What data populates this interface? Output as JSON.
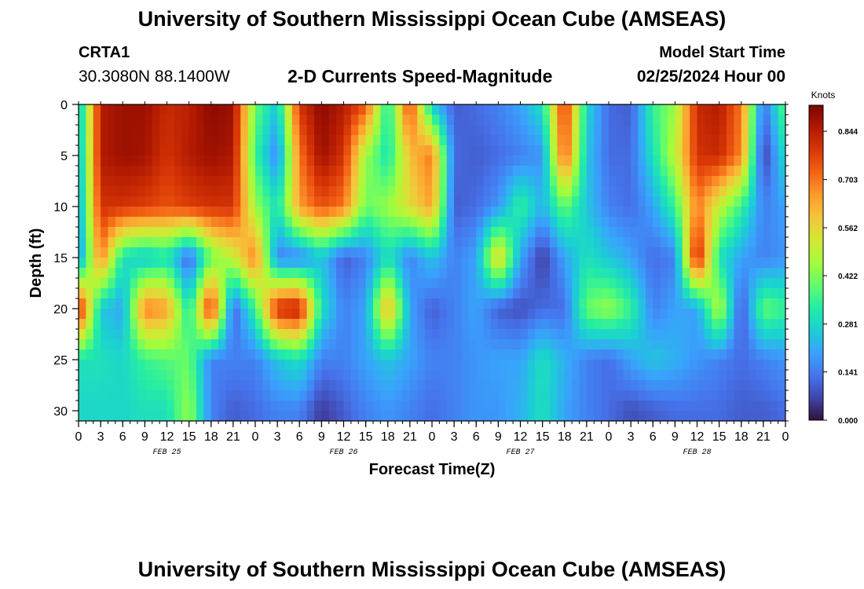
{
  "header": {
    "title": "University of Southern Mississippi Ocean Cube (AMSEAS)",
    "station_id": "CRTA1",
    "station_coords": "30.3080N  88.1400W",
    "chart_title": "2-D Currents Speed-Magnitude",
    "model_start_label": "Model Start Time",
    "model_start_value": "02/25/2024 Hour 00"
  },
  "footer": {
    "title": "University of Southern Mississippi Ocean Cube (AMSEAS)"
  },
  "colors": {
    "colormap": [
      "#30123b",
      "#4145ab",
      "#4675ed",
      "#39a2fc",
      "#1bcfd4",
      "#24eca6",
      "#61fc6c",
      "#a4fc3b",
      "#d1e834",
      "#f3c63a",
      "#fe9b2d",
      "#f36315",
      "#d93806",
      "#b11901",
      "#7a0402"
    ]
  },
  "chart_data": {
    "type": "heatmap",
    "title": "2-D Currents Speed-Magnitude",
    "xlabel": "Forecast Time(Z)",
    "ylabel": "Depth (ft)",
    "x_tick_labels": [
      "0",
      "3",
      "6",
      "9",
      "12",
      "15",
      "18",
      "21",
      "0",
      "3",
      "6",
      "9",
      "12",
      "15",
      "18",
      "21",
      "0",
      "3",
      "6",
      "9",
      "12",
      "15",
      "18",
      "21",
      "0",
      "3",
      "6",
      "9",
      "12",
      "15",
      "18",
      "21",
      "0"
    ],
    "x_hours": [
      0,
      3,
      6,
      9,
      12,
      15,
      18,
      21,
      24,
      27,
      30,
      33,
      36,
      39,
      42,
      45,
      48,
      51,
      54,
      57,
      60,
      63,
      66,
      69,
      72,
      75,
      78,
      81,
      84,
      87,
      90,
      93,
      96
    ],
    "date_labels": [
      {
        "label": "FEB 25",
        "hour": 12
      },
      {
        "label": "FEB 26",
        "hour": 36
      },
      {
        "label": "FEB 27",
        "hour": 60
      },
      {
        "label": "FEB 28",
        "hour": 84
      }
    ],
    "y_tick_labels": [
      "0",
      "5",
      "10",
      "15",
      "20",
      "25",
      "30"
    ],
    "y_ticks": [
      0,
      5,
      10,
      15,
      20,
      25,
      30
    ],
    "xlim": [
      0,
      96
    ],
    "ylim": [
      0,
      31
    ],
    "colorbar": {
      "units": "Knots",
      "tick_labels": [
        "0.000",
        "0.141",
        "0.281",
        "0.422",
        "0.562",
        "0.703",
        "0.844"
      ],
      "ticks": [
        0.0,
        0.141,
        0.281,
        0.422,
        0.562,
        0.703,
        0.844
      ],
      "range": [
        0,
        0.92
      ]
    },
    "grid": {
      "hours": [
        0,
        3,
        6,
        9,
        12,
        15,
        18,
        21,
        24,
        27,
        30,
        33,
        36,
        39,
        42,
        45,
        48,
        51,
        54,
        57,
        60,
        63,
        66,
        69,
        72,
        75,
        78,
        81,
        84,
        87,
        90,
        93,
        96
      ],
      "depths_ft": [
        0,
        5,
        10,
        15,
        20,
        25,
        30
      ],
      "speed_knots": [
        [
          0.22,
          0.85,
          0.88,
          0.88,
          0.82,
          0.84,
          0.9,
          0.88,
          0.4,
          0.25,
          0.8,
          0.9,
          0.85,
          0.75,
          0.3,
          0.78,
          0.25,
          0.1,
          0.12,
          0.15,
          0.2,
          0.3,
          0.8,
          0.28,
          0.12,
          0.1,
          0.35,
          0.45,
          0.82,
          0.85,
          0.7,
          0.12,
          0.4
        ],
        [
          0.2,
          0.85,
          0.88,
          0.87,
          0.8,
          0.85,
          0.88,
          0.86,
          0.35,
          0.15,
          0.7,
          0.88,
          0.8,
          0.45,
          0.3,
          0.6,
          0.7,
          0.12,
          0.1,
          0.12,
          0.15,
          0.18,
          0.75,
          0.25,
          0.12,
          0.12,
          0.3,
          0.5,
          0.8,
          0.82,
          0.68,
          0.05,
          0.3
        ],
        [
          0.18,
          0.8,
          0.8,
          0.78,
          0.75,
          0.78,
          0.8,
          0.8,
          0.45,
          0.3,
          0.65,
          0.75,
          0.7,
          0.4,
          0.45,
          0.55,
          0.65,
          0.1,
          0.12,
          0.18,
          0.35,
          0.22,
          0.4,
          0.25,
          0.15,
          0.12,
          0.2,
          0.35,
          0.7,
          0.5,
          0.35,
          0.15,
          0.2
        ],
        [
          0.15,
          0.7,
          0.3,
          0.25,
          0.3,
          0.1,
          0.4,
          0.5,
          0.7,
          0.15,
          0.15,
          0.25,
          0.1,
          0.15,
          0.3,
          0.15,
          0.25,
          0.15,
          0.2,
          0.6,
          0.2,
          0.05,
          0.2,
          0.3,
          0.25,
          0.2,
          0.12,
          0.15,
          0.85,
          0.3,
          0.2,
          0.15,
          0.18
        ],
        [
          0.85,
          0.25,
          0.2,
          0.7,
          0.65,
          0.3,
          0.82,
          0.1,
          0.35,
          0.82,
          0.85,
          0.3,
          0.15,
          0.2,
          0.65,
          0.2,
          0.1,
          0.15,
          0.2,
          0.1,
          0.08,
          0.12,
          0.12,
          0.4,
          0.45,
          0.35,
          0.15,
          0.2,
          0.2,
          0.5,
          0.08,
          0.4,
          0.35
        ],
        [
          0.3,
          0.3,
          0.28,
          0.35,
          0.38,
          0.4,
          0.15,
          0.15,
          0.15,
          0.25,
          0.3,
          0.15,
          0.15,
          0.2,
          0.25,
          0.2,
          0.15,
          0.15,
          0.18,
          0.2,
          0.2,
          0.3,
          0.22,
          0.15,
          0.12,
          0.2,
          0.25,
          0.22,
          0.18,
          0.15,
          0.12,
          0.15,
          0.18
        ],
        [
          0.28,
          0.28,
          0.28,
          0.3,
          0.3,
          0.45,
          0.15,
          0.1,
          0.12,
          0.15,
          0.15,
          0.05,
          0.1,
          0.15,
          0.18,
          0.15,
          0.12,
          0.15,
          0.18,
          0.18,
          0.22,
          0.3,
          0.2,
          0.15,
          0.12,
          0.08,
          0.1,
          0.12,
          0.12,
          0.12,
          0.1,
          0.1,
          0.12
        ]
      ]
    }
  }
}
